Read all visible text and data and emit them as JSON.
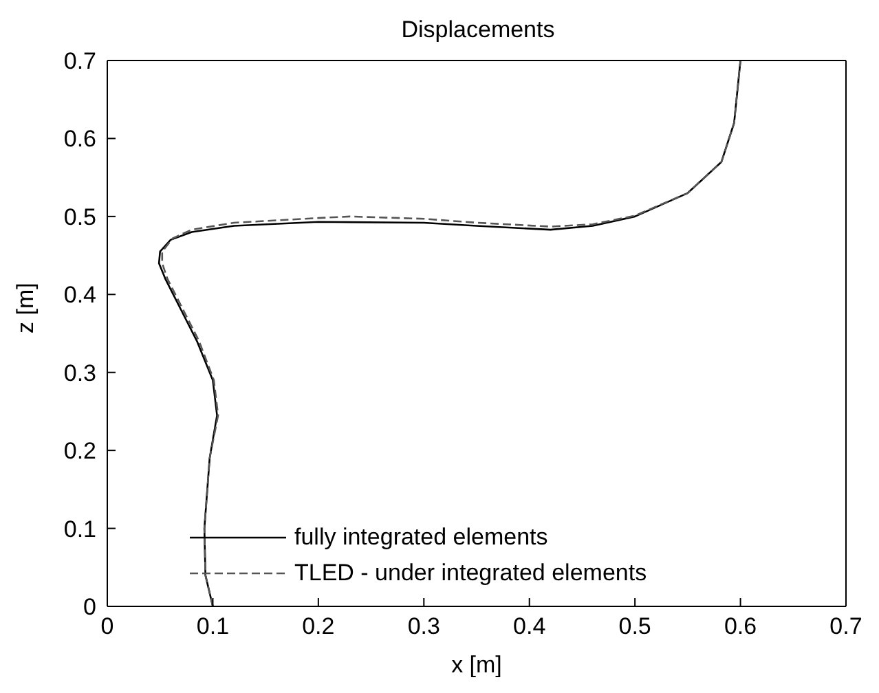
{
  "chart_data": {
    "type": "line",
    "title": "Displacements",
    "xlabel": "x [m]",
    "ylabel": "z [m]",
    "xlim": [
      0,
      0.7
    ],
    "ylim": [
      0,
      0.7
    ],
    "xticks": [
      0,
      0.1,
      0.2,
      0.3,
      0.4,
      0.5,
      0.6,
      0.7
    ],
    "yticks": [
      0,
      0.1,
      0.2,
      0.3,
      0.4,
      0.5,
      0.6,
      0.7
    ],
    "legend": "bottom left",
    "marker": "none",
    "series": [
      {
        "name": "fully integrated elements",
        "color": "#000000",
        "line_style": "solid",
        "x": [
          0.1,
          0.093,
          0.092,
          0.097,
          0.104,
          0.1,
          0.085,
          0.07,
          0.055,
          0.049,
          0.05,
          0.06,
          0.08,
          0.12,
          0.2,
          0.3,
          0.35,
          0.42,
          0.46,
          0.5,
          0.55,
          0.582,
          0.594,
          0.6
        ],
        "values": [
          0,
          0.04,
          0.1,
          0.19,
          0.245,
          0.29,
          0.34,
          0.38,
          0.42,
          0.44,
          0.455,
          0.47,
          0.48,
          0.488,
          0.493,
          0.492,
          0.488,
          0.483,
          0.488,
          0.5,
          0.53,
          0.57,
          0.62,
          0.7
        ]
      },
      {
        "name": "TLED - under integrated elements",
        "color": "#555555",
        "line_style": "dashed",
        "x": [
          0.1,
          0.093,
          0.092,
          0.097,
          0.105,
          0.101,
          0.087,
          0.072,
          0.057,
          0.052,
          0.052,
          0.062,
          0.08,
          0.12,
          0.2,
          0.23,
          0.3,
          0.35,
          0.42,
          0.46,
          0.5,
          0.55,
          0.582,
          0.594,
          0.6
        ],
        "values": [
          0,
          0.04,
          0.1,
          0.19,
          0.245,
          0.29,
          0.34,
          0.38,
          0.42,
          0.44,
          0.455,
          0.472,
          0.483,
          0.492,
          0.498,
          0.5,
          0.497,
          0.492,
          0.487,
          0.49,
          0.501,
          0.53,
          0.57,
          0.62,
          0.7
        ]
      }
    ]
  }
}
